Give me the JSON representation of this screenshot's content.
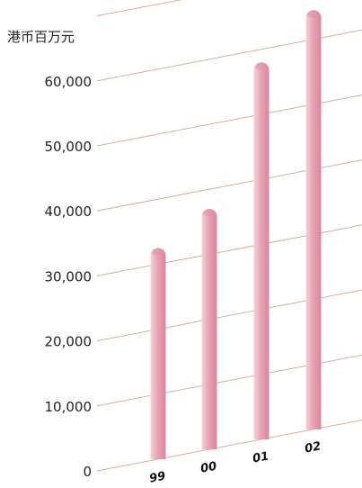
{
  "chart_data": {
    "type": "bar",
    "title": "",
    "unit_label": "港币百万元",
    "xlabel": "",
    "ylabel": "",
    "categories": [
      "99",
      "00",
      "01",
      "02"
    ],
    "values": [
      32500,
      37000,
      58000,
      64500
    ],
    "y_ticks": [
      "0",
      "10,000",
      "20,000",
      "30,000",
      "40,000",
      "50,000",
      "60,000"
    ],
    "ylim": [
      0,
      60000
    ],
    "grid": true,
    "legend": "none",
    "colors": {
      "bar_light": "#f3d3da",
      "bar_mid": "#eaa3b4",
      "bar_dark": "#d9869b",
      "bar_top": "#e291a6",
      "grid": "#d5ae98",
      "text": "#222222"
    }
  }
}
